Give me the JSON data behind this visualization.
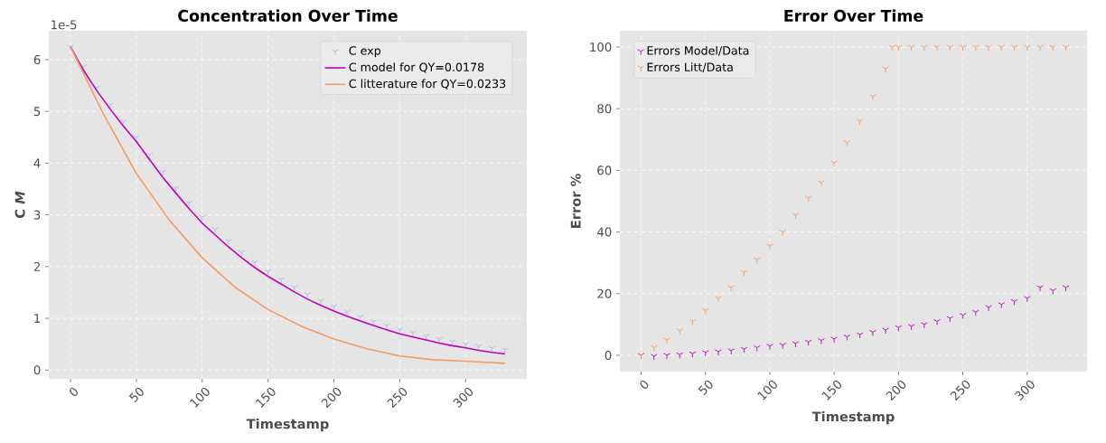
{
  "chart_data": [
    {
      "type": "line",
      "title": "Concentration Over Time",
      "xlabel": "Timestamp",
      "ylabel": "C *M*",
      "annotations": [
        "1e-5"
      ],
      "xlim": [
        -16.5,
        346.5
      ],
      "ylim": [
        -0.17,
        6.56
      ],
      "xticks": [
        0,
        50,
        100,
        150,
        200,
        250,
        300
      ],
      "yticks": [
        0,
        1,
        2,
        3,
        4,
        5,
        6
      ],
      "grid": true,
      "legend": "top right",
      "series": [
        {
          "name": "C exp",
          "type": "scatter",
          "marker": "cross",
          "color": "#a3bbe6",
          "x": [
            0,
            10,
            20,
            30,
            40,
            50,
            60,
            70,
            80,
            90,
            100,
            110,
            120,
            130,
            140,
            150,
            160,
            170,
            180,
            190,
            200,
            210,
            220,
            230,
            240,
            250,
            260,
            270,
            280,
            290,
            300,
            310,
            320,
            330
          ],
          "values": [
            6.25,
            5.87,
            5.46,
            5.12,
            4.8,
            4.5,
            4.16,
            3.83,
            3.52,
            3.23,
            2.96,
            2.72,
            2.49,
            2.28,
            2.08,
            1.91,
            1.75,
            1.6,
            1.46,
            1.34,
            1.23,
            1.12,
            1.03,
            0.94,
            0.86,
            0.78,
            0.72,
            0.66,
            0.6,
            0.55,
            0.5,
            0.46,
            0.42,
            0.39
          ]
        },
        {
          "name": "C model for QY=0.0178",
          "type": "line",
          "color": "#bf00bf",
          "x": [
            0,
            10,
            20,
            30,
            40,
            50,
            60,
            70,
            80,
            90,
            100,
            110,
            120,
            130,
            140,
            150,
            160,
            170,
            180,
            190,
            200,
            210,
            220,
            230,
            240,
            250,
            260,
            270,
            280,
            290,
            300,
            310,
            320,
            330
          ],
          "values": [
            6.25,
            5.79,
            5.4,
            5.05,
            4.72,
            4.42,
            4.07,
            3.73,
            3.42,
            3.12,
            2.84,
            2.61,
            2.38,
            2.17,
            1.98,
            1.81,
            1.66,
            1.51,
            1.37,
            1.25,
            1.14,
            1.04,
            0.95,
            0.86,
            0.78,
            0.7,
            0.64,
            0.58,
            0.52,
            0.47,
            0.43,
            0.38,
            0.34,
            0.31
          ]
        },
        {
          "name": "C litterature for QY=0.0233",
          "type": "line",
          "color": "#f79a5c",
          "x": [
            0,
            25,
            50,
            75,
            100,
            125,
            150,
            175,
            200,
            225,
            250,
            275,
            300,
            330
          ],
          "values": [
            6.25,
            4.95,
            3.8,
            2.9,
            2.17,
            1.6,
            1.17,
            0.85,
            0.6,
            0.41,
            0.27,
            0.2,
            0.17,
            0.13
          ]
        }
      ]
    },
    {
      "type": "scatter",
      "title": "Error Over Time",
      "xlabel": "Timestamp",
      "ylabel": "Error %",
      "xlim": [
        -16.5,
        346.5
      ],
      "ylim": [
        -5.3,
        105.3
      ],
      "xticks": [
        0,
        50,
        100,
        150,
        200,
        250,
        300
      ],
      "yticks": [
        0,
        20,
        40,
        60,
        80,
        100
      ],
      "grid": true,
      "legend": "top left",
      "marker": "cross",
      "series": [
        {
          "name": "Errors Model/Data",
          "color": "#bf00bf",
          "x": [
            0,
            10,
            20,
            30,
            40,
            50,
            60,
            70,
            80,
            90,
            100,
            110,
            120,
            130,
            140,
            150,
            160,
            170,
            180,
            190,
            200,
            210,
            220,
            230,
            240,
            250,
            260,
            270,
            280,
            290,
            300,
            310,
            320,
            330
          ],
          "values": [
            0,
            -0.3,
            0,
            0.2,
            0.5,
            0.9,
            1.2,
            1.5,
            2,
            2.5,
            3,
            3.3,
            3.8,
            4.3,
            4.8,
            5.3,
            6,
            6.7,
            7.5,
            8.2,
            9,
            9.4,
            10,
            11,
            12,
            13,
            14,
            15.5,
            16.5,
            17.5,
            18.5,
            22,
            21,
            22
          ]
        },
        {
          "name": "Errors Litt/Data",
          "color": "#f79a5c",
          "x": [
            0,
            10,
            20,
            30,
            40,
            50,
            60,
            70,
            80,
            90,
            100,
            110,
            120,
            130,
            140,
            150,
            160,
            170,
            180,
            190,
            195,
            200,
            210,
            220,
            230,
            240,
            250,
            260,
            270,
            280,
            290,
            300,
            310,
            320,
            330
          ],
          "values": [
            0,
            2.5,
            5,
            8,
            11,
            14.5,
            18.5,
            22,
            27,
            31,
            35.5,
            40,
            45.5,
            51,
            56,
            62.5,
            69,
            76,
            84,
            93,
            100,
            100,
            100,
            100,
            100,
            100,
            100,
            100,
            100,
            100,
            100,
            100,
            100,
            100,
            100
          ]
        }
      ]
    }
  ]
}
